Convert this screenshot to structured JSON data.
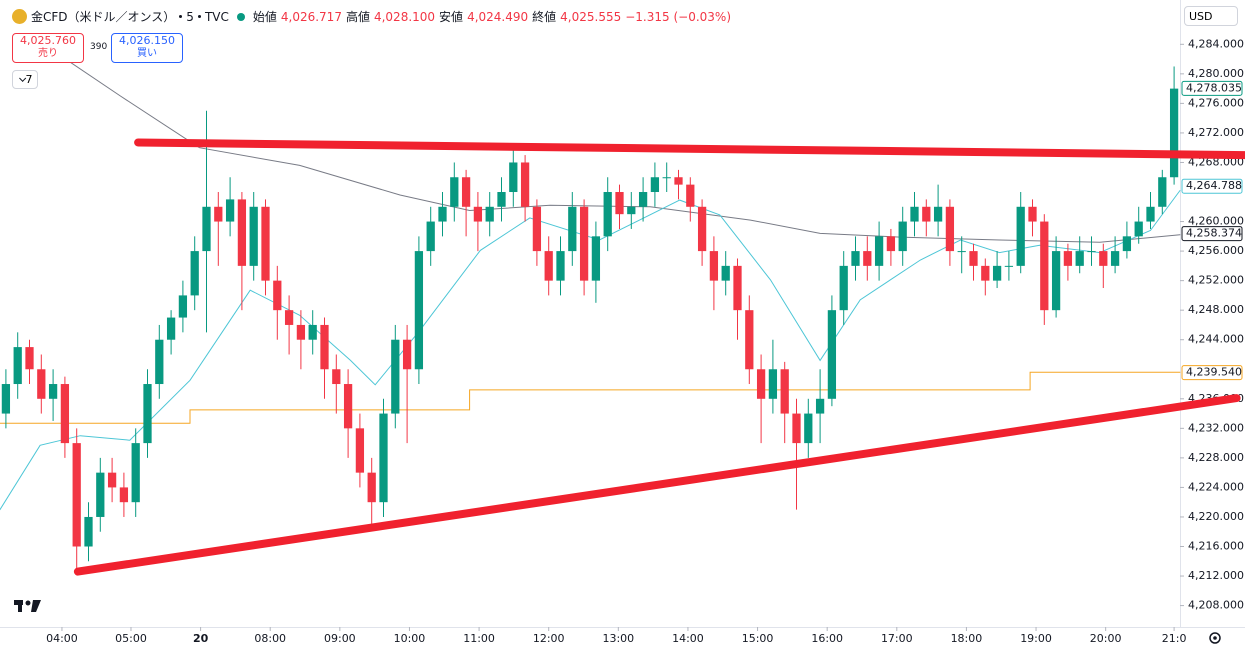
{
  "chart_data": {
    "type": "candlestick",
    "header": {
      "symbol": "金CFD（米ドル／オンス）",
      "interval": "5",
      "source": "TVC",
      "open_label": "始値",
      "open": "4,026.717",
      "high_label": "高値",
      "high": "4,028.100",
      "low_label": "安値",
      "low": "4,024.490",
      "close_label": "終値",
      "close": "4,025.555",
      "change": "−1.315 (−0.03%)"
    },
    "sell": {
      "price": "4,025.760",
      "label": "売り"
    },
    "spread": "390",
    "buy": {
      "price": "4,026.150",
      "label": "買い"
    },
    "indicators_count": "7",
    "currency": "USD",
    "up_color": "#089981",
    "down_color": "#f23645",
    "ylim": [
      4205.1,
      4290
    ],
    "yticks": [
      {
        "value": 4208,
        "label": "4,208.000"
      },
      {
        "value": 4212,
        "label": "4,212.000"
      },
      {
        "value": 4216,
        "label": "4,216.000"
      },
      {
        "value": 4220,
        "label": "4,220.000"
      },
      {
        "value": 4224,
        "label": "4,224.000"
      },
      {
        "value": 4228,
        "label": "4,228.000"
      },
      {
        "value": 4232,
        "label": "4,232.000"
      },
      {
        "value": 4236,
        "label": "4,236.000"
      },
      {
        "value": 4244,
        "label": "4,244.000"
      },
      {
        "value": 4248,
        "label": "4,248.000"
      },
      {
        "value": 4252,
        "label": "4,252.000"
      },
      {
        "value": 4256,
        "label": "4,256.000"
      },
      {
        "value": 4260,
        "label": "4,260.000"
      },
      {
        "value": 4268,
        "label": "4,268.000"
      },
      {
        "value": 4272,
        "label": "4,272.000"
      },
      {
        "value": 4276,
        "label": "4,276.000"
      },
      {
        "value": 4280,
        "label": "4,280.000"
      },
      {
        "value": 4284,
        "label": "4,284.000"
      }
    ],
    "xlim": [
      -0.5,
      99.5
    ],
    "xticks": [
      {
        "value": 4.75,
        "label": "04:00"
      },
      {
        "value": 10.6,
        "label": "05:00"
      },
      {
        "value": 16.5,
        "label": "20"
      },
      {
        "value": 22.4,
        "label": "08:00"
      },
      {
        "value": 28.3,
        "label": "09:00"
      },
      {
        "value": 34.2,
        "label": "10:00"
      },
      {
        "value": 40.1,
        "label": "11:00"
      },
      {
        "value": 46.0,
        "label": "12:00"
      },
      {
        "value": 51.9,
        "label": "13:00"
      },
      {
        "value": 57.8,
        "label": "14:00"
      },
      {
        "value": 63.7,
        "label": "15:00"
      },
      {
        "value": 69.6,
        "label": "16:00"
      },
      {
        "value": 75.5,
        "label": "17:00"
      },
      {
        "value": 81.4,
        "label": "18:00"
      },
      {
        "value": 87.3,
        "label": "19:00"
      },
      {
        "value": 93.2,
        "label": "20:00"
      },
      {
        "value": 99.0,
        "label": "21:0"
      }
    ],
    "candles": [
      [
        4234,
        4240,
        4232,
        4238
      ],
      [
        4238,
        4245,
        4236,
        4243
      ],
      [
        4243,
        4244,
        4238,
        4240
      ],
      [
        4240,
        4242,
        4234,
        4236
      ],
      [
        4236,
        4240,
        4233,
        4238
      ],
      [
        4238,
        4239,
        4228,
        4230
      ],
      [
        4230,
        4232,
        4213,
        4216
      ],
      [
        4216,
        4222,
        4214,
        4220
      ],
      [
        4220,
        4228,
        4218,
        4226
      ],
      [
        4226,
        4228,
        4222,
        4224
      ],
      [
        4224,
        4226,
        4220,
        4222
      ],
      [
        4222,
        4232,
        4220,
        4230
      ],
      [
        4230,
        4240,
        4228,
        4238
      ],
      [
        4238,
        4246,
        4236,
        4244
      ],
      [
        4244,
        4248,
        4242,
        4247
      ],
      [
        4247,
        4252,
        4245,
        4250
      ],
      [
        4250,
        4258,
        4248,
        4256
      ],
      [
        4256,
        4275,
        4245,
        4262
      ],
      [
        4262,
        4264,
        4254,
        4260
      ],
      [
        4260,
        4266,
        4258,
        4263
      ],
      [
        4263,
        4264,
        4248,
        4254
      ],
      [
        4254,
        4264,
        4252,
        4262
      ],
      [
        4262,
        4263,
        4250,
        4252
      ],
      [
        4252,
        4254,
        4244,
        4248
      ],
      [
        4248,
        4250,
        4242,
        4246
      ],
      [
        4246,
        4248,
        4240,
        4244
      ],
      [
        4244,
        4248,
        4242,
        4246
      ],
      [
        4246,
        4247,
        4236,
        4240
      ],
      [
        4240,
        4242,
        4234,
        4238
      ],
      [
        4238,
        4240,
        4228,
        4232
      ],
      [
        4232,
        4234,
        4224,
        4226
      ],
      [
        4226,
        4228,
        4219,
        4222
      ],
      [
        4222,
        4236,
        4220,
        4234
      ],
      [
        4234,
        4246,
        4232,
        4244
      ],
      [
        4244,
        4246,
        4230,
        4240
      ],
      [
        4240,
        4258,
        4238,
        4256
      ],
      [
        4256,
        4262,
        4254,
        4260
      ],
      [
        4260,
        4264,
        4258,
        4262
      ],
      [
        4262,
        4268,
        4260,
        4266
      ],
      [
        4266,
        4267,
        4258,
        4262
      ],
      [
        4262,
        4264,
        4256,
        4260
      ],
      [
        4260,
        4264,
        4258,
        4262
      ],
      [
        4262,
        4266,
        4260,
        4264
      ],
      [
        4264,
        4270,
        4262,
        4268
      ],
      [
        4268,
        4269,
        4260,
        4262
      ],
      [
        4262,
        4263,
        4254,
        4256
      ],
      [
        4256,
        4258,
        4250,
        4252
      ],
      [
        4252,
        4258,
        4250,
        4256
      ],
      [
        4256,
        4264,
        4254,
        4262
      ],
      [
        4262,
        4263,
        4250,
        4252
      ],
      [
        4252,
        4260,
        4249,
        4258
      ],
      [
        4258,
        4266,
        4256,
        4264
      ],
      [
        4264,
        4265,
        4259,
        4261
      ],
      [
        4261,
        4264,
        4259,
        4262
      ],
      [
        4262,
        4266,
        4260,
        4264
      ],
      [
        4264,
        4268,
        4262,
        4266
      ],
      [
        4266,
        4268,
        4264,
        4266
      ],
      [
        4266,
        4267,
        4263,
        4265
      ],
      [
        4265,
        4266,
        4260,
        4262
      ],
      [
        4262,
        4263,
        4254,
        4256
      ],
      [
        4256,
        4258,
        4248,
        4252
      ],
      [
        4252,
        4256,
        4250,
        4254
      ],
      [
        4254,
        4255,
        4244,
        4248
      ],
      [
        4248,
        4250,
        4238,
        4240
      ],
      [
        4240,
        4242,
        4230,
        4236
      ],
      [
        4236,
        4244,
        4234,
        4240
      ],
      [
        4240,
        4241,
        4230,
        4234
      ],
      [
        4234,
        4236,
        4221,
        4230
      ],
      [
        4230,
        4236,
        4228,
        4234
      ],
      [
        4234,
        4240,
        4230,
        4236
      ],
      [
        4236,
        4250,
        4235,
        4248
      ],
      [
        4248,
        4256,
        4246,
        4254
      ],
      [
        4254,
        4258,
        4252,
        4256
      ],
      [
        4256,
        4258,
        4252,
        4254
      ],
      [
        4254,
        4260,
        4252,
        4258
      ],
      [
        4258,
        4259,
        4254,
        4256
      ],
      [
        4256,
        4262,
        4254,
        4260
      ],
      [
        4260,
        4264,
        4258,
        4262
      ],
      [
        4262,
        4263,
        4258,
        4260
      ],
      [
        4260,
        4265,
        4258,
        4262
      ],
      [
        4262,
        4263,
        4254,
        4256
      ],
      [
        4256,
        4258,
        4253,
        4256
      ],
      [
        4256,
        4257,
        4252,
        4254
      ],
      [
        4254,
        4255,
        4250,
        4252
      ],
      [
        4252,
        4256,
        4251,
        4254
      ],
      [
        4254,
        4256,
        4252,
        4254
      ],
      [
        4254,
        4264,
        4253,
        4262
      ],
      [
        4262,
        4263,
        4258,
        4260
      ],
      [
        4260,
        4261,
        4246,
        4248
      ],
      [
        4248,
        4258,
        4247,
        4256
      ],
      [
        4256,
        4257,
        4252,
        4254
      ],
      [
        4254,
        4258,
        4253,
        4256
      ],
      [
        4256,
        4258,
        4254,
        4256
      ],
      [
        4256,
        4257,
        4251,
        4254
      ],
      [
        4254,
        4258,
        4253,
        4256
      ],
      [
        4256,
        4260,
        4255,
        4258
      ],
      [
        4258,
        4262,
        4257,
        4260
      ],
      [
        4260,
        4264,
        4259,
        4262
      ],
      [
        4262,
        4267,
        4261,
        4266
      ],
      [
        4266,
        4281,
        4265,
        4278
      ]
    ],
    "lines": [
      {
        "color": "#787b86",
        "x": [
          4.6,
          9.7,
          16.4,
          24.9,
          33.4,
          39.3,
          46.1,
          54.6,
          63.1,
          69,
          75.8,
          84.2,
          92.7,
          99.5
        ],
        "values": [
          4282.5,
          4277,
          4270,
          4267.6,
          4263.6,
          4261.5,
          4262.2,
          4262,
          4260.2,
          4258.4,
          4257.9,
          4257.5,
          4257.2,
          4258.2
        ]
      },
      {
        "color": "#4dc6d6",
        "x": [
          -0.5,
          2.9,
          6.3,
          10.5,
          15.6,
          20.7,
          24.9,
          29.2,
          31.3,
          35.1,
          40.2,
          44.4,
          50.3,
          57.1,
          60.5,
          64.8,
          69,
          72.4,
          77.5,
          80.9,
          84.2,
          87.6,
          92.7,
          97,
          99.5
        ],
        "values": [
          4221,
          4229.7,
          4231,
          4230.4,
          4238.5,
          4250.7,
          4247.3,
          4241.2,
          4237.9,
          4245.3,
          4256.1,
          4260.5,
          4257.5,
          4262.9,
          4260.9,
          4252.1,
          4241.2,
          4249.4,
          4254.8,
          4257.5,
          4255.8,
          4256.8,
          4255.8,
          4258.8,
          4264.2
        ]
      },
      {
        "color": "#f5a623",
        "x": [
          -0.5,
          15.6,
          15.6,
          39.3,
          39.3,
          86.8,
          86.8,
          99.5
        ],
        "values": [
          4232.7,
          4232.7,
          4234.5,
          4234.5,
          4237.2,
          4237.2,
          4239.6,
          4239.6
        ]
      }
    ],
    "drawings": [
      {
        "color": "#f0212e",
        "x": [
          11.2,
          105
        ],
        "values": [
          4270.7,
          4269.0
        ]
      },
      {
        "color": "#f0212e",
        "x": [
          6.1,
          104.3
        ],
        "values": [
          4212.6,
          4236.1
        ]
      }
    ],
    "price_tags": [
      {
        "value": 4278.035,
        "label": "4,278.035",
        "color": "#089981",
        "fill": "#ffffff"
      },
      {
        "value": 4264.788,
        "label": "4,264.788",
        "color": "#4dc6d6",
        "fill": "#ffffff"
      },
      {
        "value": 4258.374,
        "label": "4,258.374",
        "color": "#131722",
        "fill": "#ffffff"
      },
      {
        "value": 4239.54,
        "label": "4,239.540",
        "color": "#f5a623",
        "fill": "#ffffff"
      }
    ]
  }
}
